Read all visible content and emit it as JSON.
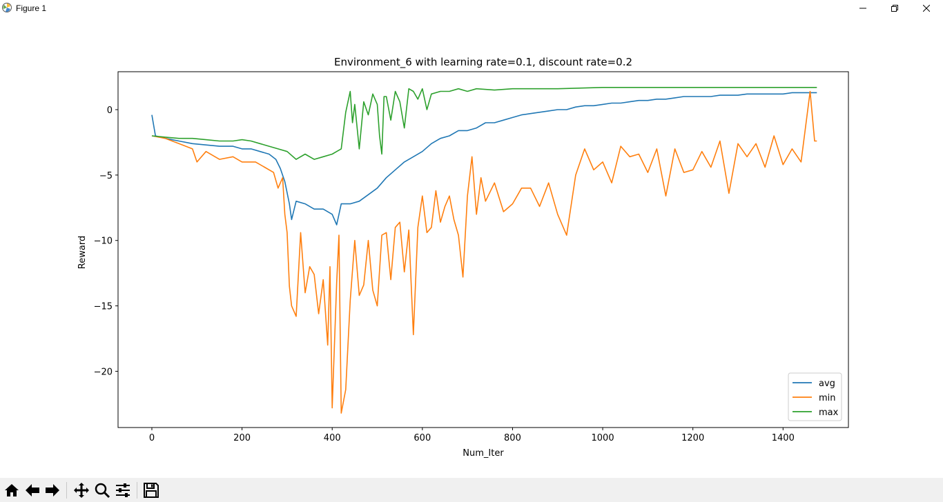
{
  "window": {
    "title": "Figure 1",
    "icons": [
      "app-icon",
      "minimize-icon",
      "restore-icon",
      "close-icon"
    ]
  },
  "toolbar": {
    "icons": [
      "home-icon",
      "back-arrow-icon",
      "forward-arrow-icon",
      "pan-icon",
      "zoom-icon",
      "configure-subplots-icon",
      "save-icon"
    ]
  },
  "colors": {
    "avg": "#1f77b4",
    "min": "#ff7f0e",
    "max": "#2ca02c"
  },
  "chart_data": {
    "type": "line",
    "title": "Environment_6 with learning rate=0.1, discount rate=0.2",
    "xlabel": "Num_Iter",
    "ylabel": "Reward",
    "xlim": [
      -75,
      1545
    ],
    "ylim": [
      -24.3,
      2.9
    ],
    "xticks": [
      0,
      200,
      400,
      600,
      800,
      1000,
      1200,
      1400
    ],
    "yticks": [
      0,
      -5,
      -10,
      -15,
      -20
    ],
    "legend_position": "lower right",
    "series": [
      {
        "name": "avg",
        "color": "#1f77b4",
        "points": [
          [
            0,
            -0.4
          ],
          [
            8,
            -2
          ],
          [
            30,
            -2.2
          ],
          [
            60,
            -2.4
          ],
          [
            90,
            -2.6
          ],
          [
            120,
            -2.7
          ],
          [
            150,
            -2.8
          ],
          [
            180,
            -2.8
          ],
          [
            200,
            -3.0
          ],
          [
            220,
            -3.0
          ],
          [
            240,
            -3.2
          ],
          [
            260,
            -3.4
          ],
          [
            275,
            -3.8
          ],
          [
            285,
            -4.5
          ],
          [
            295,
            -5.5
          ],
          [
            305,
            -7.2
          ],
          [
            310,
            -8.4
          ],
          [
            320,
            -7.0
          ],
          [
            340,
            -7.2
          ],
          [
            360,
            -7.6
          ],
          [
            380,
            -7.6
          ],
          [
            400,
            -8.0
          ],
          [
            410,
            -8.8
          ],
          [
            420,
            -7.2
          ],
          [
            440,
            -7.2
          ],
          [
            460,
            -7.0
          ],
          [
            480,
            -6.5
          ],
          [
            500,
            -6.0
          ],
          [
            520,
            -5.2
          ],
          [
            540,
            -4.6
          ],
          [
            560,
            -4.0
          ],
          [
            580,
            -3.6
          ],
          [
            600,
            -3.2
          ],
          [
            620,
            -2.6
          ],
          [
            640,
            -2.2
          ],
          [
            660,
            -2.0
          ],
          [
            680,
            -1.6
          ],
          [
            700,
            -1.6
          ],
          [
            720,
            -1.4
          ],
          [
            740,
            -1.0
          ],
          [
            760,
            -1.0
          ],
          [
            780,
            -0.8
          ],
          [
            800,
            -0.6
          ],
          [
            820,
            -0.4
          ],
          [
            840,
            -0.3
          ],
          [
            860,
            -0.2
          ],
          [
            880,
            -0.1
          ],
          [
            900,
            0.0
          ],
          [
            920,
            0.0
          ],
          [
            940,
            0.2
          ],
          [
            960,
            0.3
          ],
          [
            980,
            0.3
          ],
          [
            1000,
            0.4
          ],
          [
            1020,
            0.5
          ],
          [
            1040,
            0.5
          ],
          [
            1060,
            0.6
          ],
          [
            1080,
            0.7
          ],
          [
            1100,
            0.7
          ],
          [
            1120,
            0.8
          ],
          [
            1140,
            0.8
          ],
          [
            1160,
            0.9
          ],
          [
            1180,
            1.0
          ],
          [
            1200,
            1.0
          ],
          [
            1220,
            1.0
          ],
          [
            1240,
            1.0
          ],
          [
            1260,
            1.1
          ],
          [
            1280,
            1.1
          ],
          [
            1300,
            1.1
          ],
          [
            1320,
            1.2
          ],
          [
            1340,
            1.2
          ],
          [
            1360,
            1.2
          ],
          [
            1380,
            1.2
          ],
          [
            1400,
            1.2
          ],
          [
            1420,
            1.3
          ],
          [
            1440,
            1.3
          ],
          [
            1460,
            1.3
          ],
          [
            1475,
            1.3
          ]
        ]
      },
      {
        "name": "min",
        "color": "#ff7f0e",
        "points": [
          [
            0,
            -2
          ],
          [
            30,
            -2.2
          ],
          [
            60,
            -2.6
          ],
          [
            90,
            -3.0
          ],
          [
            100,
            -4.0
          ],
          [
            120,
            -3.2
          ],
          [
            150,
            -3.8
          ],
          [
            180,
            -3.6
          ],
          [
            200,
            -4.0
          ],
          [
            230,
            -4.0
          ],
          [
            250,
            -4.4
          ],
          [
            270,
            -4.8
          ],
          [
            280,
            -6.0
          ],
          [
            290,
            -5.2
          ],
          [
            295,
            -8.0
          ],
          [
            300,
            -9.4
          ],
          [
            305,
            -13.5
          ],
          [
            310,
            -15.0
          ],
          [
            320,
            -15.8
          ],
          [
            330,
            -9.4
          ],
          [
            340,
            -14.0
          ],
          [
            350,
            -12.0
          ],
          [
            360,
            -12.6
          ],
          [
            370,
            -15.6
          ],
          [
            380,
            -13.0
          ],
          [
            390,
            -18.0
          ],
          [
            395,
            -12.0
          ],
          [
            400,
            -22.8
          ],
          [
            410,
            -13.2
          ],
          [
            415,
            -9.6
          ],
          [
            420,
            -23.2
          ],
          [
            430,
            -21.4
          ],
          [
            440,
            -14.6
          ],
          [
            450,
            -10.0
          ],
          [
            460,
            -14.2
          ],
          [
            470,
            -13.4
          ],
          [
            480,
            -10.0
          ],
          [
            490,
            -13.8
          ],
          [
            500,
            -15.0
          ],
          [
            510,
            -9.6
          ],
          [
            520,
            -9.4
          ],
          [
            530,
            -13.0
          ],
          [
            540,
            -9.0
          ],
          [
            550,
            -8.6
          ],
          [
            560,
            -12.4
          ],
          [
            570,
            -9.2
          ],
          [
            580,
            -17.2
          ],
          [
            590,
            -9.0
          ],
          [
            600,
            -6.6
          ],
          [
            610,
            -9.4
          ],
          [
            620,
            -9.0
          ],
          [
            630,
            -6.2
          ],
          [
            640,
            -8.6
          ],
          [
            650,
            -7.4
          ],
          [
            660,
            -6.6
          ],
          [
            670,
            -8.4
          ],
          [
            680,
            -9.6
          ],
          [
            690,
            -12.8
          ],
          [
            700,
            -6.6
          ],
          [
            710,
            -3.6
          ],
          [
            720,
            -8.0
          ],
          [
            730,
            -5.2
          ],
          [
            740,
            -7.0
          ],
          [
            760,
            -5.6
          ],
          [
            780,
            -7.8
          ],
          [
            800,
            -7.2
          ],
          [
            820,
            -6.0
          ],
          [
            840,
            -6.0
          ],
          [
            860,
            -7.4
          ],
          [
            880,
            -5.6
          ],
          [
            900,
            -8.0
          ],
          [
            920,
            -9.6
          ],
          [
            940,
            -5.0
          ],
          [
            960,
            -3.0
          ],
          [
            980,
            -4.6
          ],
          [
            1000,
            -4.0
          ],
          [
            1020,
            -5.6
          ],
          [
            1040,
            -2.8
          ],
          [
            1060,
            -3.6
          ],
          [
            1080,
            -3.4
          ],
          [
            1100,
            -4.8
          ],
          [
            1120,
            -3.0
          ],
          [
            1140,
            -6.6
          ],
          [
            1160,
            -3.0
          ],
          [
            1180,
            -4.8
          ],
          [
            1200,
            -4.6
          ],
          [
            1220,
            -3.2
          ],
          [
            1240,
            -4.4
          ],
          [
            1260,
            -2.4
          ],
          [
            1280,
            -6.4
          ],
          [
            1300,
            -2.6
          ],
          [
            1320,
            -3.6
          ],
          [
            1340,
            -2.6
          ],
          [
            1360,
            -4.4
          ],
          [
            1380,
            -2.0
          ],
          [
            1400,
            -4.2
          ],
          [
            1420,
            -3.0
          ],
          [
            1440,
            -4.0
          ],
          [
            1460,
            1.4
          ],
          [
            1470,
            -2.4
          ],
          [
            1475,
            -2.4
          ]
        ]
      },
      {
        "name": "max",
        "color": "#2ca02c",
        "points": [
          [
            0,
            -2
          ],
          [
            30,
            -2.1
          ],
          [
            60,
            -2.2
          ],
          [
            90,
            -2.2
          ],
          [
            120,
            -2.3
          ],
          [
            150,
            -2.4
          ],
          [
            180,
            -2.4
          ],
          [
            200,
            -2.3
          ],
          [
            220,
            -2.4
          ],
          [
            240,
            -2.6
          ],
          [
            260,
            -2.8
          ],
          [
            280,
            -3.0
          ],
          [
            300,
            -3.2
          ],
          [
            320,
            -3.8
          ],
          [
            340,
            -3.4
          ],
          [
            360,
            -3.8
          ],
          [
            380,
            -3.6
          ],
          [
            400,
            -3.4
          ],
          [
            410,
            -3.2
          ],
          [
            420,
            -3.0
          ],
          [
            430,
            -0.2
          ],
          [
            440,
            1.4
          ],
          [
            445,
            -1.0
          ],
          [
            450,
            0.4
          ],
          [
            460,
            -3.0
          ],
          [
            470,
            0.6
          ],
          [
            480,
            -0.4
          ],
          [
            490,
            1.2
          ],
          [
            500,
            0.4
          ],
          [
            505,
            -2.0
          ],
          [
            510,
            -3.4
          ],
          [
            515,
            1.0
          ],
          [
            520,
            1.0
          ],
          [
            530,
            -0.8
          ],
          [
            540,
            1.4
          ],
          [
            550,
            0.6
          ],
          [
            560,
            -1.4
          ],
          [
            570,
            1.6
          ],
          [
            580,
            1.4
          ],
          [
            590,
            0.8
          ],
          [
            600,
            1.6
          ],
          [
            610,
            0.0
          ],
          [
            620,
            1.2
          ],
          [
            640,
            1.4
          ],
          [
            660,
            1.4
          ],
          [
            680,
            1.6
          ],
          [
            700,
            1.4
          ],
          [
            720,
            1.6
          ],
          [
            760,
            1.5
          ],
          [
            800,
            1.6
          ],
          [
            840,
            1.6
          ],
          [
            900,
            1.6
          ],
          [
            1000,
            1.7
          ],
          [
            1100,
            1.7
          ],
          [
            1200,
            1.7
          ],
          [
            1300,
            1.7
          ],
          [
            1400,
            1.7
          ],
          [
            1475,
            1.7
          ]
        ]
      }
    ]
  }
}
